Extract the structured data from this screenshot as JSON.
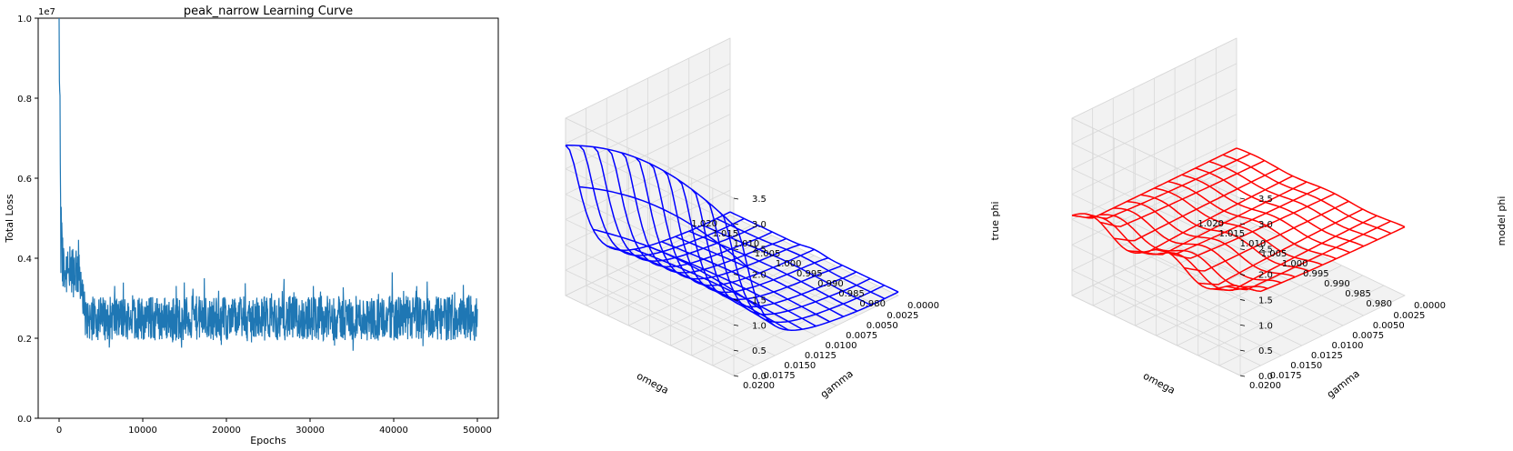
{
  "chart_data": [
    {
      "type": "line",
      "title": "peak_narrow Learning Curve",
      "xlabel": "Epochs",
      "ylabel": "Total Loss",
      "y_offset_label": "1e7",
      "xlim": [
        -2500,
        52500
      ],
      "ylim": [
        0.0,
        1.0
      ],
      "x_ticks": [
        0,
        10000,
        20000,
        30000,
        40000,
        50000
      ],
      "y_ticks": [
        0.0,
        0.2,
        0.4,
        0.6,
        0.8,
        1.0
      ],
      "x_tick_labels": [
        "0",
        "10000",
        "20000",
        "30000",
        "40000",
        "50000"
      ],
      "y_tick_labels": [
        "0.0",
        "0.2",
        "0.4",
        "0.6",
        "0.8",
        "1.0"
      ],
      "series": [
        {
          "color": "#1f77b4",
          "x": [
            0,
            100,
            200,
            400,
            700,
            1000,
            1500,
            2000,
            2500,
            2800,
            3000,
            4000,
            5000,
            10000,
            20000,
            30000,
            40000,
            50000
          ],
          "y": [
            1.0,
            0.7,
            0.45,
            0.38,
            0.36,
            0.35,
            0.35,
            0.36,
            0.34,
            0.3,
            0.26,
            0.245,
            0.24,
            0.24,
            0.24,
            0.24,
            0.24,
            0.245
          ],
          "noise_band": {
            "x": [
              0,
              500,
              2500,
              3000,
              50000
            ],
            "y_low": [
              0.27,
              0.27,
              0.27,
              0.17,
              0.17
            ],
            "y_high": [
              0.48,
              0.48,
              0.48,
              0.33,
              0.33
            ]
          }
        }
      ],
      "grid": false
    },
    {
      "type": "surface3d",
      "color": "#0000ff",
      "xlabel": "omega",
      "ylabel": "gamma",
      "zlabel": "true phi",
      "xlim": [
        0.98,
        1.02
      ],
      "ylim": [
        0.0,
        0.02
      ],
      "zlim": [
        0.0,
        3.5
      ],
      "x_tick_labels": [
        "1.020",
        "1.015",
        "1.010",
        "1.005",
        "1.000",
        "0.995",
        "0.990",
        "0.985",
        "0.980"
      ],
      "y_tick_labels": [
        "0.0000",
        "0.0025",
        "0.0050",
        "0.0075",
        "0.0100",
        "0.0125",
        "0.0150",
        "0.0175",
        "0.0200"
      ],
      "z_tick_labels": [
        "0.0",
        "0.5",
        "1.0",
        "1.5",
        "2.0",
        "2.5",
        "3.0",
        "3.5"
      ],
      "grid": true
    },
    {
      "type": "surface3d",
      "color": "#ff0000",
      "xlabel": "omega",
      "ylabel": "gamma",
      "zlabel": "model phi",
      "xlim": [
        0.98,
        1.02
      ],
      "ylim": [
        0.0,
        0.02
      ],
      "zlim": [
        0.0,
        3.5
      ],
      "x_tick_labels": [
        "1.020",
        "1.015",
        "1.010",
        "1.005",
        "1.000",
        "0.995",
        "0.990",
        "0.985",
        "0.980"
      ],
      "y_tick_labels": [
        "0.0000",
        "0.0025",
        "0.0050",
        "0.0075",
        "0.0100",
        "0.0125",
        "0.0150",
        "0.0175",
        "0.0200"
      ],
      "z_tick_labels": [
        "0.0",
        "0.5",
        "1.0",
        "1.5",
        "2.0",
        "2.5",
        "3.0",
        "3.5"
      ],
      "grid": true
    }
  ]
}
